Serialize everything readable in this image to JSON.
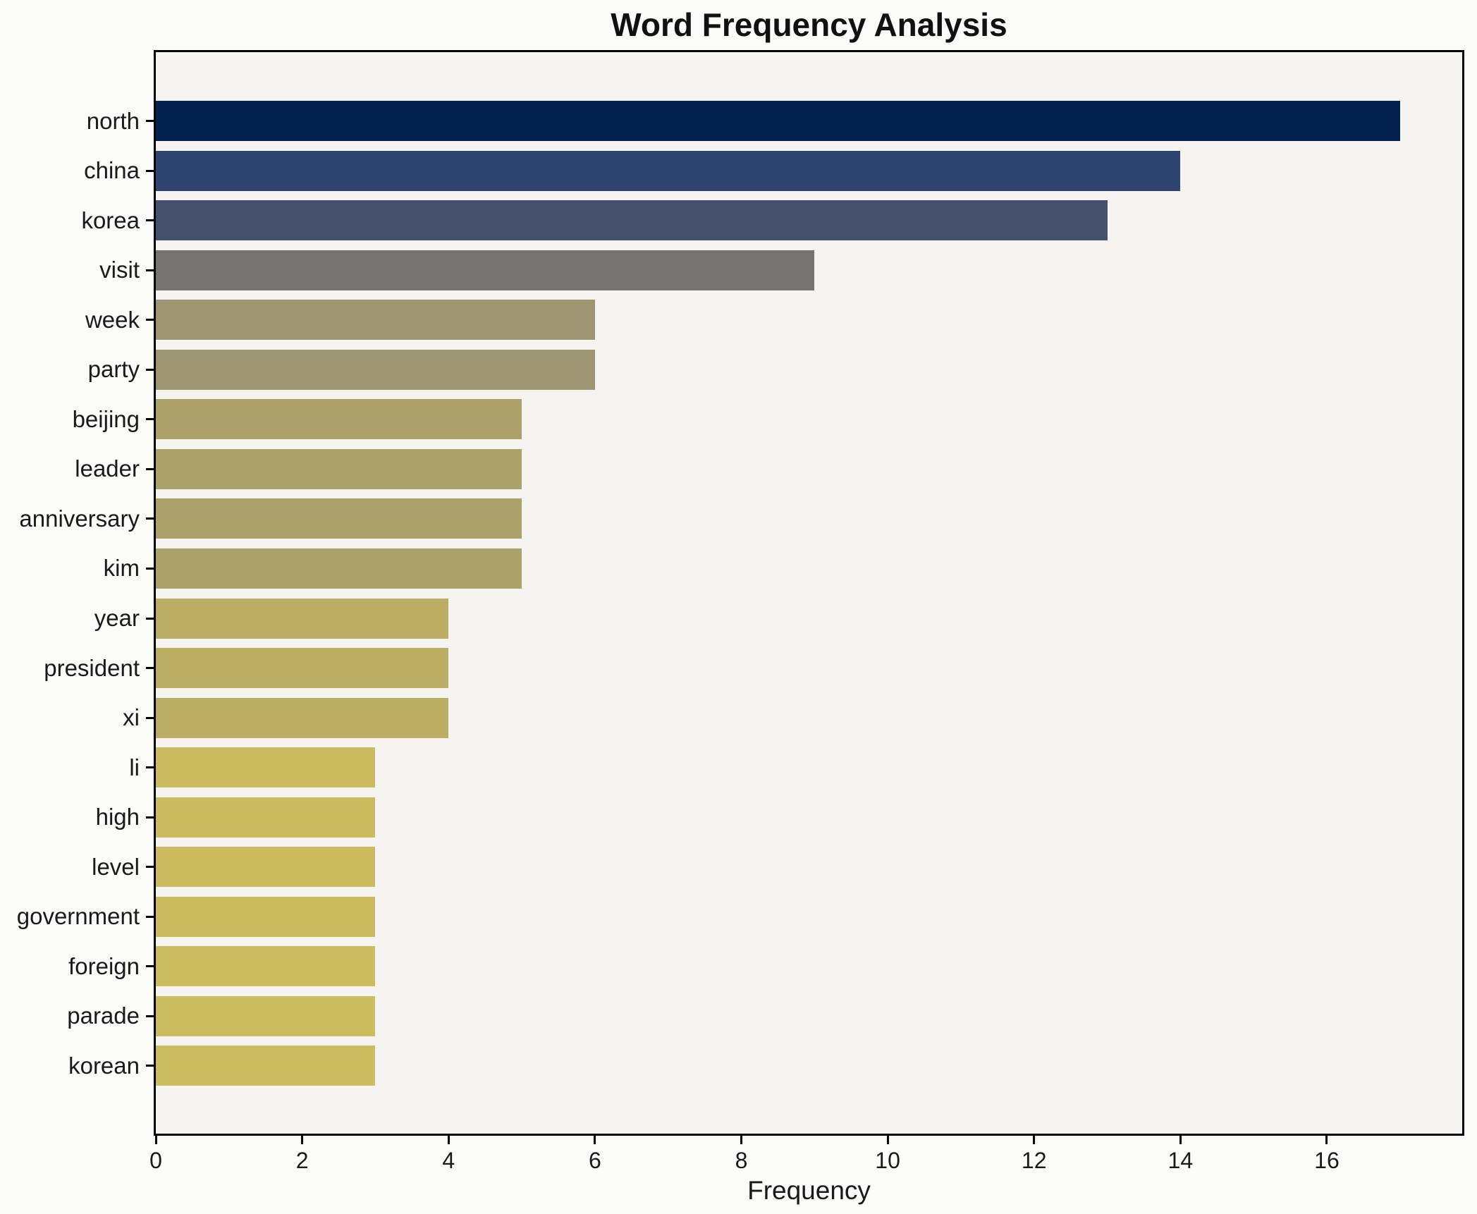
{
  "chart": {
    "title": "Word Frequency Analysis",
    "xlabel": "Frequency",
    "figure_background": "#fbfbfa",
    "axes_background": "#f5f4f1",
    "spine_color": "#000000",
    "text_color": "#1a1a1a",
    "grid": false,
    "legend": null
  },
  "chart_data": {
    "type": "bar",
    "orientation": "horizontal",
    "title": "Word Frequency Analysis",
    "xlabel": "Frequency",
    "ylabel": "",
    "xlim": [
      0,
      17.85
    ],
    "xticks": [
      0,
      2,
      4,
      6,
      8,
      10,
      12,
      14,
      16
    ],
    "categories": [
      "north",
      "china",
      "korea",
      "visit",
      "week",
      "party",
      "beijing",
      "leader",
      "anniversary",
      "kim",
      "year",
      "president",
      "xi",
      "li",
      "high",
      "level",
      "government",
      "foreign",
      "parade",
      "korean"
    ],
    "values": [
      17,
      14,
      13,
      9,
      6,
      6,
      5,
      5,
      5,
      5,
      4,
      4,
      4,
      3,
      3,
      3,
      3,
      3,
      3,
      3
    ],
    "colors": [
      "#02214d",
      "#2f4470",
      "#45516f",
      "#757473",
      "#9e9673",
      "#9e9673",
      "#aba269",
      "#aba269",
      "#aba269",
      "#aba269",
      "#bbae64",
      "#bbae64",
      "#bbae64",
      "#cbba5f",
      "#cbba5f",
      "#cbba5f",
      "#cbba5f",
      "#ccbc60",
      "#ccbc60",
      "#ccbc60"
    ]
  }
}
